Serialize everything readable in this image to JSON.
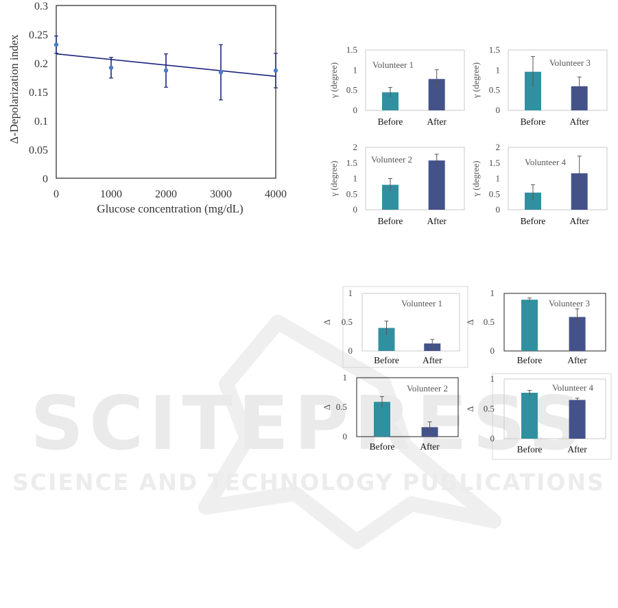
{
  "watermark": {
    "line1": "SCITEPRESS",
    "line2": "SCIENCE AND TECHNOLOGY PUBLICATIONS"
  },
  "colors": {
    "before": "#3190a0",
    "after": "#44528a",
    "line": "#1a237e",
    "point": "#4a7cc2",
    "watermark": "#eaeaea"
  },
  "chart_data": [
    {
      "type": "scatter",
      "xlabel": "Glucose concentration (mg/dL)",
      "ylabel": "Δ-Depolarization index",
      "xlim": [
        0,
        4000
      ],
      "ylim": [
        0,
        0.3
      ],
      "xticks": [
        "0",
        "1000",
        "2000",
        "3000",
        "4000"
      ],
      "yticks": [
        "0",
        "0.05",
        "0.1",
        "0.15",
        "0.2",
        "0.25",
        "0.3"
      ],
      "x": [
        0,
        1000,
        2000,
        3000,
        4000
      ],
      "y": [
        0.232,
        0.192,
        0.187,
        0.184,
        0.187
      ],
      "err": [
        0.015,
        0.018,
        0.029,
        0.048,
        0.03
      ],
      "fit": {
        "x": [
          0,
          4000
        ],
        "y": [
          0.216,
          0.177
        ]
      },
      "grid": false
    },
    {
      "type": "bar",
      "title": "Volunteer 1",
      "ylabel": "γ (degree)",
      "categories": [
        "Before",
        "After"
      ],
      "values": [
        0.45,
        0.78
      ],
      "err": [
        0.12,
        0.23
      ],
      "ylim": [
        0,
        1.5
      ],
      "yticks": [
        "0",
        "0.5",
        "1",
        "1.5"
      ]
    },
    {
      "type": "bar",
      "title": "Volunteer 3",
      "ylabel": "γ (degree)",
      "categories": [
        "Before",
        "After"
      ],
      "values": [
        0.96,
        0.6
      ],
      "err": [
        0.38,
        0.23
      ],
      "ylim": [
        0,
        1.5
      ],
      "yticks": [
        "0",
        "0.5",
        "1",
        "1.5"
      ]
    },
    {
      "type": "bar",
      "title": "Volunteer 2",
      "ylabel": "γ (degree)",
      "categories": [
        "Before",
        "After"
      ],
      "values": [
        0.8,
        1.58
      ],
      "err": [
        0.2,
        0.2
      ],
      "ylim": [
        0,
        2
      ],
      "yticks": [
        "0",
        "0.5",
        "1",
        "1.5",
        "2"
      ]
    },
    {
      "type": "bar",
      "title": "Volunteer 4",
      "ylabel": "γ (degree)",
      "categories": [
        "Before",
        "After"
      ],
      "values": [
        0.55,
        1.17
      ],
      "err": [
        0.25,
        0.55
      ],
      "ylim": [
        0,
        2
      ],
      "yticks": [
        "0",
        "0.5",
        "1",
        "1.5",
        "2"
      ]
    },
    {
      "type": "bar",
      "title": "Volunteer 1",
      "ylabel": "Δ",
      "categories": [
        "Before",
        "After"
      ],
      "values": [
        0.4,
        0.13
      ],
      "err": [
        0.12,
        0.07
      ],
      "ylim": [
        0,
        1
      ],
      "yticks": [
        "0",
        "0.5",
        "1"
      ]
    },
    {
      "type": "bar",
      "title": "Volunteer 3",
      "ylabel": "Δ",
      "categories": [
        "Before",
        "After"
      ],
      "values": [
        0.89,
        0.59
      ],
      "err": [
        0.03,
        0.14
      ],
      "ylim": [
        0,
        1
      ],
      "yticks": [
        "0",
        "0.5",
        "1"
      ]
    },
    {
      "type": "bar",
      "title": "Volunteer 2",
      "ylabel": "Δ",
      "categories": [
        "Before",
        "After"
      ],
      "values": [
        0.59,
        0.16
      ],
      "err": [
        0.09,
        0.09
      ],
      "ylim": [
        0,
        1
      ],
      "yticks": [
        "0",
        "0.5",
        "1"
      ]
    },
    {
      "type": "bar",
      "title": "Volunteer 4",
      "ylabel": "Δ",
      "categories": [
        "Before",
        "After"
      ],
      "values": [
        0.77,
        0.65
      ],
      "err": [
        0.04,
        0.03
      ],
      "ylim": [
        0,
        1
      ],
      "yticks": [
        "0",
        "0.5",
        "1"
      ]
    }
  ]
}
